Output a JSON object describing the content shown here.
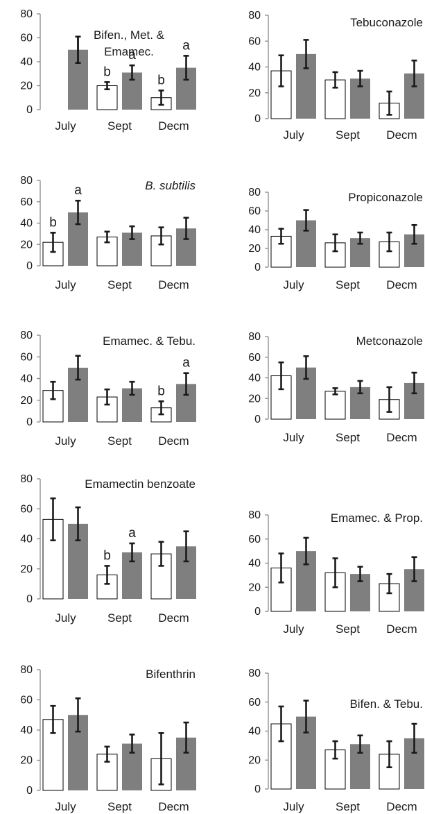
{
  "chart_data": [
    {
      "type": "bar",
      "title": "Bifen., Met. &",
      "title2": "Emamec.",
      "title_italic": false,
      "categories": [
        "July",
        "Sept",
        "Decm"
      ],
      "ylim": [
        0,
        80
      ],
      "yticks": [
        0,
        20,
        40,
        60,
        80
      ],
      "series": [
        {
          "values": [
            null,
            20,
            10
          ],
          "errors": [
            null,
            3,
            6
          ]
        },
        {
          "values": [
            50,
            31,
            35
          ],
          "errors": [
            11,
            6,
            10
          ]
        }
      ],
      "placeholder": {
        "category": 0,
        "series": 0,
        "value": 50
      },
      "letters": [
        {
          "category": 1,
          "series": 0,
          "text": "b"
        },
        {
          "category": 1,
          "series": 1,
          "text": "a"
        },
        {
          "category": 2,
          "series": 0,
          "text": "b"
        },
        {
          "category": 2,
          "series": 1,
          "text": "a"
        }
      ]
    },
    {
      "type": "bar",
      "title": "Tebuconazole",
      "title_italic": false,
      "categories": [
        "July",
        "Sept",
        "Decm"
      ],
      "ylim": [
        0,
        80
      ],
      "yticks": [
        0,
        20,
        40,
        60,
        80
      ],
      "series": [
        {
          "values": [
            37,
            30,
            12
          ],
          "errors": [
            12,
            6,
            9
          ]
        },
        {
          "values": [
            50,
            31,
            35
          ],
          "errors": [
            11,
            6,
            10
          ]
        }
      ],
      "letters": []
    },
    {
      "type": "bar",
      "title": "B. subtilis",
      "title_italic": true,
      "categories": [
        "July",
        "Sept",
        "Decm"
      ],
      "ylim": [
        0,
        80
      ],
      "yticks": [
        0,
        20,
        40,
        60,
        80
      ],
      "series": [
        {
          "values": [
            22,
            27,
            28
          ],
          "errors": [
            9,
            5,
            8
          ]
        },
        {
          "values": [
            50,
            31,
            35
          ],
          "errors": [
            11,
            6,
            10
          ]
        }
      ],
      "letters": [
        {
          "category": 0,
          "series": 0,
          "text": "b"
        },
        {
          "category": 0,
          "series": 1,
          "text": "a"
        }
      ]
    },
    {
      "type": "bar",
      "title": "Propiconazole",
      "title_italic": false,
      "categories": [
        "July",
        "Sept",
        "Decm"
      ],
      "ylim": [
        0,
        80
      ],
      "yticks": [
        0,
        20,
        40,
        60,
        80
      ],
      "series": [
        {
          "values": [
            33,
            26,
            27
          ],
          "errors": [
            8,
            9,
            10
          ]
        },
        {
          "values": [
            50,
            31,
            35
          ],
          "errors": [
            11,
            6,
            10
          ]
        }
      ],
      "letters": []
    },
    {
      "type": "bar",
      "title": "Emamec. & Tebu.",
      "title_italic": false,
      "categories": [
        "July",
        "Sept",
        "Decm"
      ],
      "ylim": [
        0,
        80
      ],
      "yticks": [
        0,
        20,
        40,
        60,
        80
      ],
      "series": [
        {
          "values": [
            29,
            23,
            13
          ],
          "errors": [
            8,
            7,
            6
          ]
        },
        {
          "values": [
            50,
            31,
            35
          ],
          "errors": [
            11,
            6,
            10
          ]
        }
      ],
      "letters": [
        {
          "category": 2,
          "series": 0,
          "text": "b"
        },
        {
          "category": 2,
          "series": 1,
          "text": "a"
        }
      ]
    },
    {
      "type": "bar",
      "title": "Metconazole",
      "title_italic": false,
      "categories": [
        "July",
        "Sept",
        "Decm"
      ],
      "ylim": [
        0,
        80
      ],
      "yticks": [
        0,
        20,
        40,
        60,
        80
      ],
      "series": [
        {
          "values": [
            42,
            27,
            19
          ],
          "errors": [
            13,
            3,
            12
          ]
        },
        {
          "values": [
            50,
            31,
            35
          ],
          "errors": [
            11,
            6,
            10
          ]
        }
      ],
      "letters": []
    },
    {
      "type": "bar",
      "title": "Emamectin benzoate",
      "title_italic": false,
      "categories": [
        "July",
        "Sept",
        "Decm"
      ],
      "ylim": [
        0,
        80
      ],
      "yticks": [
        0,
        20,
        40,
        60,
        80
      ],
      "series": [
        {
          "values": [
            53,
            16,
            30
          ],
          "errors": [
            14,
            6,
            8
          ]
        },
        {
          "values": [
            50,
            31,
            35
          ],
          "errors": [
            11,
            6,
            10
          ]
        }
      ],
      "letters": [
        {
          "category": 1,
          "series": 0,
          "text": "b"
        },
        {
          "category": 1,
          "series": 1,
          "text": "a"
        }
      ]
    },
    {
      "type": "bar",
      "title": "Emamec. & Prop.",
      "title_italic": false,
      "categories": [
        "July",
        "Sept",
        "Decm"
      ],
      "ylim": [
        0,
        80
      ],
      "yticks": [
        0,
        20,
        40,
        60,
        80
      ],
      "series": [
        {
          "values": [
            36,
            32,
            23
          ],
          "errors": [
            12,
            12,
            8
          ]
        },
        {
          "values": [
            50,
            31,
            35
          ],
          "errors": [
            11,
            6,
            10
          ]
        }
      ],
      "letters": []
    },
    {
      "type": "bar",
      "title": "Bifenthrin",
      "title_italic": false,
      "categories": [
        "July",
        "Sept",
        "Decm"
      ],
      "ylim": [
        0,
        80
      ],
      "yticks": [
        0,
        20,
        40,
        60,
        80
      ],
      "series": [
        {
          "values": [
            47,
            24,
            21
          ],
          "errors": [
            9,
            5,
            17
          ]
        },
        {
          "values": [
            50,
            31,
            35
          ],
          "errors": [
            11,
            6,
            10
          ]
        }
      ],
      "letters": []
    },
    {
      "type": "bar",
      "title": "Bifen. & Tebu.",
      "title_italic": false,
      "categories": [
        "July",
        "Sept",
        "Decm"
      ],
      "ylim": [
        0,
        80
      ],
      "yticks": [
        0,
        20,
        40,
        60,
        80
      ],
      "series": [
        {
          "values": [
            45,
            27,
            24
          ],
          "errors": [
            12,
            6,
            9
          ]
        },
        {
          "values": [
            50,
            31,
            35
          ],
          "errors": [
            11,
            6,
            10
          ]
        }
      ],
      "letters": []
    }
  ],
  "colors": {
    "series0_fill": "#ffffff",
    "series1_fill": "#7f7f7f",
    "placeholder_fill": "#e0e0e0",
    "axis": "#808080",
    "error_bar": "#1a1a1a"
  }
}
